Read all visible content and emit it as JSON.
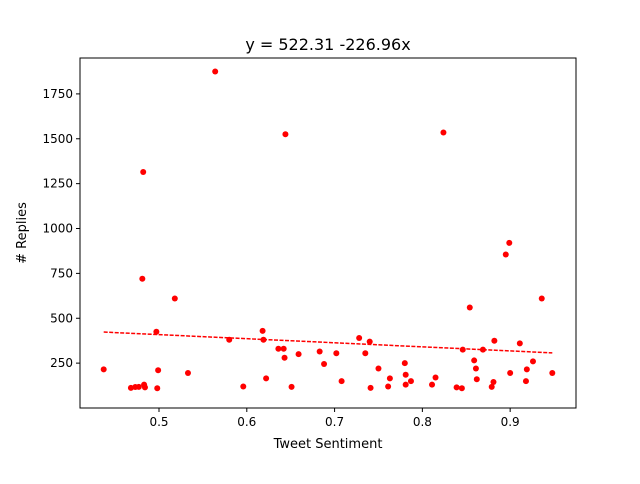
{
  "chart_data": {
    "type": "scatter",
    "title": "y = 522.31 -226.96x",
    "xlabel": "Tweet Sentiment",
    "ylabel": "# Replies",
    "xlim": [
      0.41,
      0.975
    ],
    "ylim": [
      0,
      1950
    ],
    "x_ticks": [
      0.5,
      0.6,
      0.7,
      0.8,
      0.9
    ],
    "x_tick_labels": [
      "0.5",
      "0.6",
      "0.7",
      "0.8",
      "0.9"
    ],
    "y_ticks": [
      250,
      500,
      750,
      1000,
      1250,
      1500,
      1750
    ],
    "y_tick_labels": [
      "250",
      "500",
      "750",
      "1000",
      "1250",
      "1500",
      "1750"
    ],
    "grid": false,
    "colors": {
      "points": "#ff0000",
      "trendline": "#ff0000",
      "axes": "#000000"
    },
    "points": [
      [
        0.437,
        215
      ],
      [
        0.468,
        112
      ],
      [
        0.473,
        117
      ],
      [
        0.477,
        118
      ],
      [
        0.482,
        1315
      ],
      [
        0.481,
        720
      ],
      [
        0.483,
        130
      ],
      [
        0.484,
        115
      ],
      [
        0.497,
        425
      ],
      [
        0.498,
        110
      ],
      [
        0.499,
        210
      ],
      [
        0.518,
        610
      ],
      [
        0.533,
        195
      ],
      [
        0.564,
        1875
      ],
      [
        0.58,
        380
      ],
      [
        0.596,
        120
      ],
      [
        0.618,
        430
      ],
      [
        0.619,
        380
      ],
      [
        0.622,
        165
      ],
      [
        0.636,
        330
      ],
      [
        0.642,
        330
      ],
      [
        0.643,
        280
      ],
      [
        0.644,
        1525
      ],
      [
        0.651,
        118
      ],
      [
        0.659,
        300
      ],
      [
        0.683,
        315
      ],
      [
        0.688,
        245
      ],
      [
        0.702,
        305
      ],
      [
        0.708,
        150
      ],
      [
        0.728,
        390
      ],
      [
        0.735,
        305
      ],
      [
        0.74,
        370
      ],
      [
        0.741,
        112
      ],
      [
        0.75,
        220
      ],
      [
        0.761,
        120
      ],
      [
        0.763,
        165
      ],
      [
        0.78,
        250
      ],
      [
        0.781,
        185
      ],
      [
        0.781,
        130
      ],
      [
        0.787,
        150
      ],
      [
        0.811,
        130
      ],
      [
        0.815,
        170
      ],
      [
        0.824,
        1535
      ],
      [
        0.839,
        115
      ],
      [
        0.845,
        110
      ],
      [
        0.846,
        325
      ],
      [
        0.854,
        560
      ],
      [
        0.859,
        265
      ],
      [
        0.861,
        220
      ],
      [
        0.862,
        160
      ],
      [
        0.869,
        325
      ],
      [
        0.879,
        118
      ],
      [
        0.881,
        145
      ],
      [
        0.882,
        375
      ],
      [
        0.895,
        855
      ],
      [
        0.899,
        920
      ],
      [
        0.9,
        195
      ],
      [
        0.911,
        360
      ],
      [
        0.918,
        150
      ],
      [
        0.919,
        215
      ],
      [
        0.926,
        260
      ],
      [
        0.936,
        610
      ],
      [
        0.948,
        195
      ]
    ],
    "trendline": {
      "intercept": 522.31,
      "slope": -226.96,
      "x_range": [
        0.437,
        0.948
      ]
    }
  }
}
